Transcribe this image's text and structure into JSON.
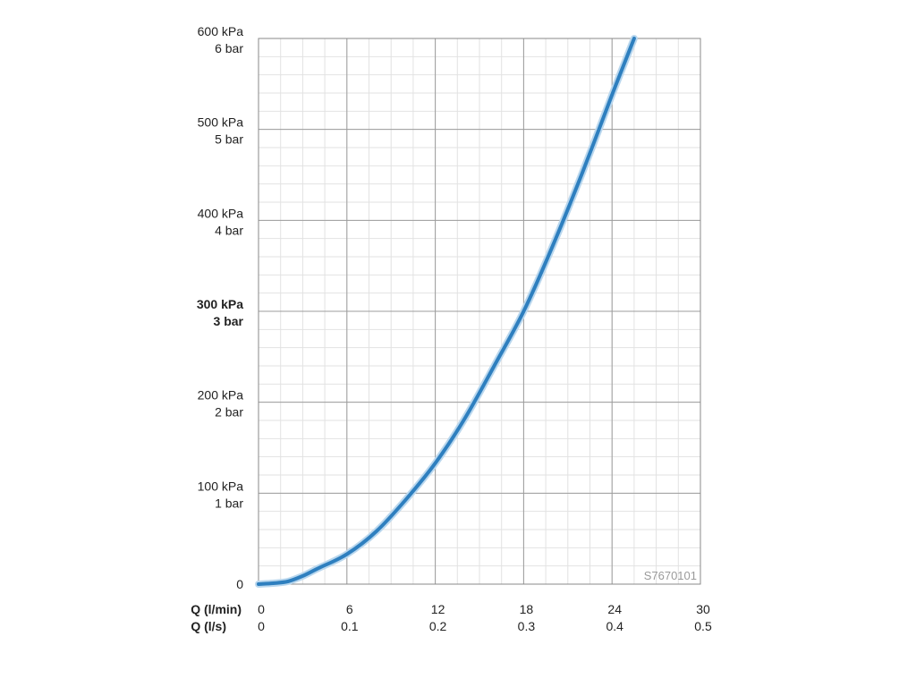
{
  "chart_data": {
    "type": "line",
    "x_unit_primary": "Q (l/min)",
    "x_unit_secondary": "Q (l/s)",
    "xlim": [
      0,
      30
    ],
    "ylim": [
      0,
      600
    ],
    "x_ticks": [
      0,
      6,
      12,
      18,
      24,
      30
    ],
    "x_tick_labels": [
      "0",
      "6",
      "12",
      "18",
      "24",
      "30"
    ],
    "x2_tick_labels": [
      "0",
      "0.1",
      "0.2",
      "0.3",
      "0.4",
      "0.5"
    ],
    "y_ticks": [
      0,
      100,
      200,
      300,
      400,
      500,
      600
    ],
    "y_tick_labels": [
      {
        "kpa": "0",
        "bar": ""
      },
      {
        "kpa": "100 kPa",
        "bar": "1 bar"
      },
      {
        "kpa": "200 kPa",
        "bar": "2 bar"
      },
      {
        "kpa": "300 kPa",
        "bar": "3 bar",
        "bold": true
      },
      {
        "kpa": "400 kPa",
        "bar": "4 bar"
      },
      {
        "kpa": "500 kPa",
        "bar": "5 bar"
      },
      {
        "kpa": "600 kPa",
        "bar": "6 bar"
      }
    ],
    "grid": true,
    "series": [
      {
        "color": "#2e7fbf",
        "x": [
          0,
          1,
          2,
          3,
          4,
          6,
          8,
          10,
          12,
          14,
          16,
          18,
          20,
          22,
          24,
          25.5
        ],
        "y": [
          0,
          1,
          3,
          9,
          17,
          33,
          58,
          93,
          133,
          182,
          240,
          300,
          373,
          453,
          538,
          600
        ]
      }
    ],
    "watermark": "S7670101"
  }
}
